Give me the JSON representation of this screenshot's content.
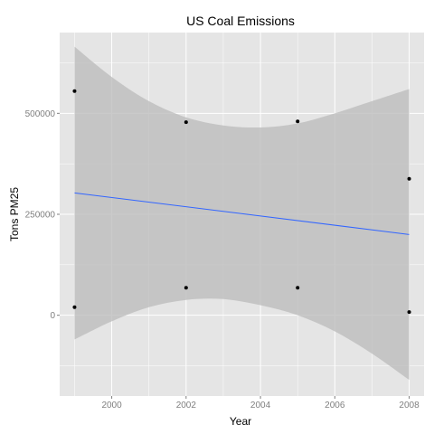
{
  "chart_data": {
    "type": "scatter",
    "title": "US Coal Emissions",
    "xlabel": "Year",
    "ylabel": "Tons PM25",
    "xlim": [
      1998.6,
      2008.4
    ],
    "ylim": [
      -200000,
      700000
    ],
    "x_ticks": [
      2000,
      2002,
      2004,
      2006,
      2008
    ],
    "y_ticks": [
      0,
      250000,
      500000
    ],
    "x_tick_labels": [
      "2000",
      "2002",
      "2004",
      "2006",
      "2008"
    ],
    "y_tick_labels": [
      "0",
      "250000",
      "500000"
    ],
    "grid": true,
    "series": [
      {
        "points": [
          {
            "x": 1999,
            "y": 555000
          },
          {
            "x": 1999,
            "y": 20000
          },
          {
            "x": 2002,
            "y": 478000
          },
          {
            "x": 2002,
            "y": 68000
          },
          {
            "x": 2005,
            "y": 480000
          },
          {
            "x": 2005,
            "y": 68000
          },
          {
            "x": 2008,
            "y": 338000
          },
          {
            "x": 2008,
            "y": 8000
          }
        ]
      }
    ],
    "trend_line": {
      "x": [
        1999,
        2008
      ],
      "y": [
        303000,
        200000
      ]
    },
    "confidence_band": {
      "x": [
        1999,
        2000,
        2001,
        2002,
        2003,
        2004,
        2005,
        2006,
        2007,
        2008
      ],
      "upper": [
        665000,
        590000,
        530000,
        490000,
        470000,
        465000,
        475000,
        500000,
        530000,
        560000
      ],
      "lower": [
        -60000,
        -15000,
        20000,
        38000,
        40000,
        25000,
        0,
        -40000,
        -95000,
        -160000
      ]
    },
    "colors": {
      "panel_background": "#e5e5e5",
      "grid": "#ffffff",
      "points": "#000000",
      "trend_line": "#3366ff",
      "band": "#bdbdbd"
    }
  }
}
